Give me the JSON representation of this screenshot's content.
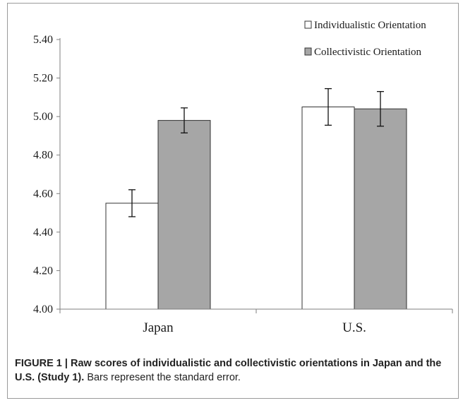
{
  "chart_data": {
    "type": "bar",
    "categories": [
      "Japan",
      "U.S."
    ],
    "series": [
      {
        "name": "Individualistic Orientation",
        "values": [
          4.55,
          5.05
        ],
        "errors": [
          0.07,
          0.095
        ],
        "color": "#ffffff"
      },
      {
        "name": "Collectivistic Orientation",
        "values": [
          4.98,
          5.04
        ],
        "errors": [
          0.065,
          0.09
        ],
        "color": "#a6a6a6"
      }
    ],
    "ylim": [
      4.0,
      5.4
    ],
    "yticks": [
      "4.00",
      "4.20",
      "4.40",
      "4.60",
      "4.80",
      "5.00",
      "5.20",
      "5.40"
    ],
    "legend_position": "top-right",
    "grid": false
  },
  "caption": {
    "bold_text": "FIGURE 1 | Raw scores of individualistic and collectivistic orientations in Japan and the U.S. (Study 1).",
    "normal_text": " Bars represent the standard error."
  }
}
